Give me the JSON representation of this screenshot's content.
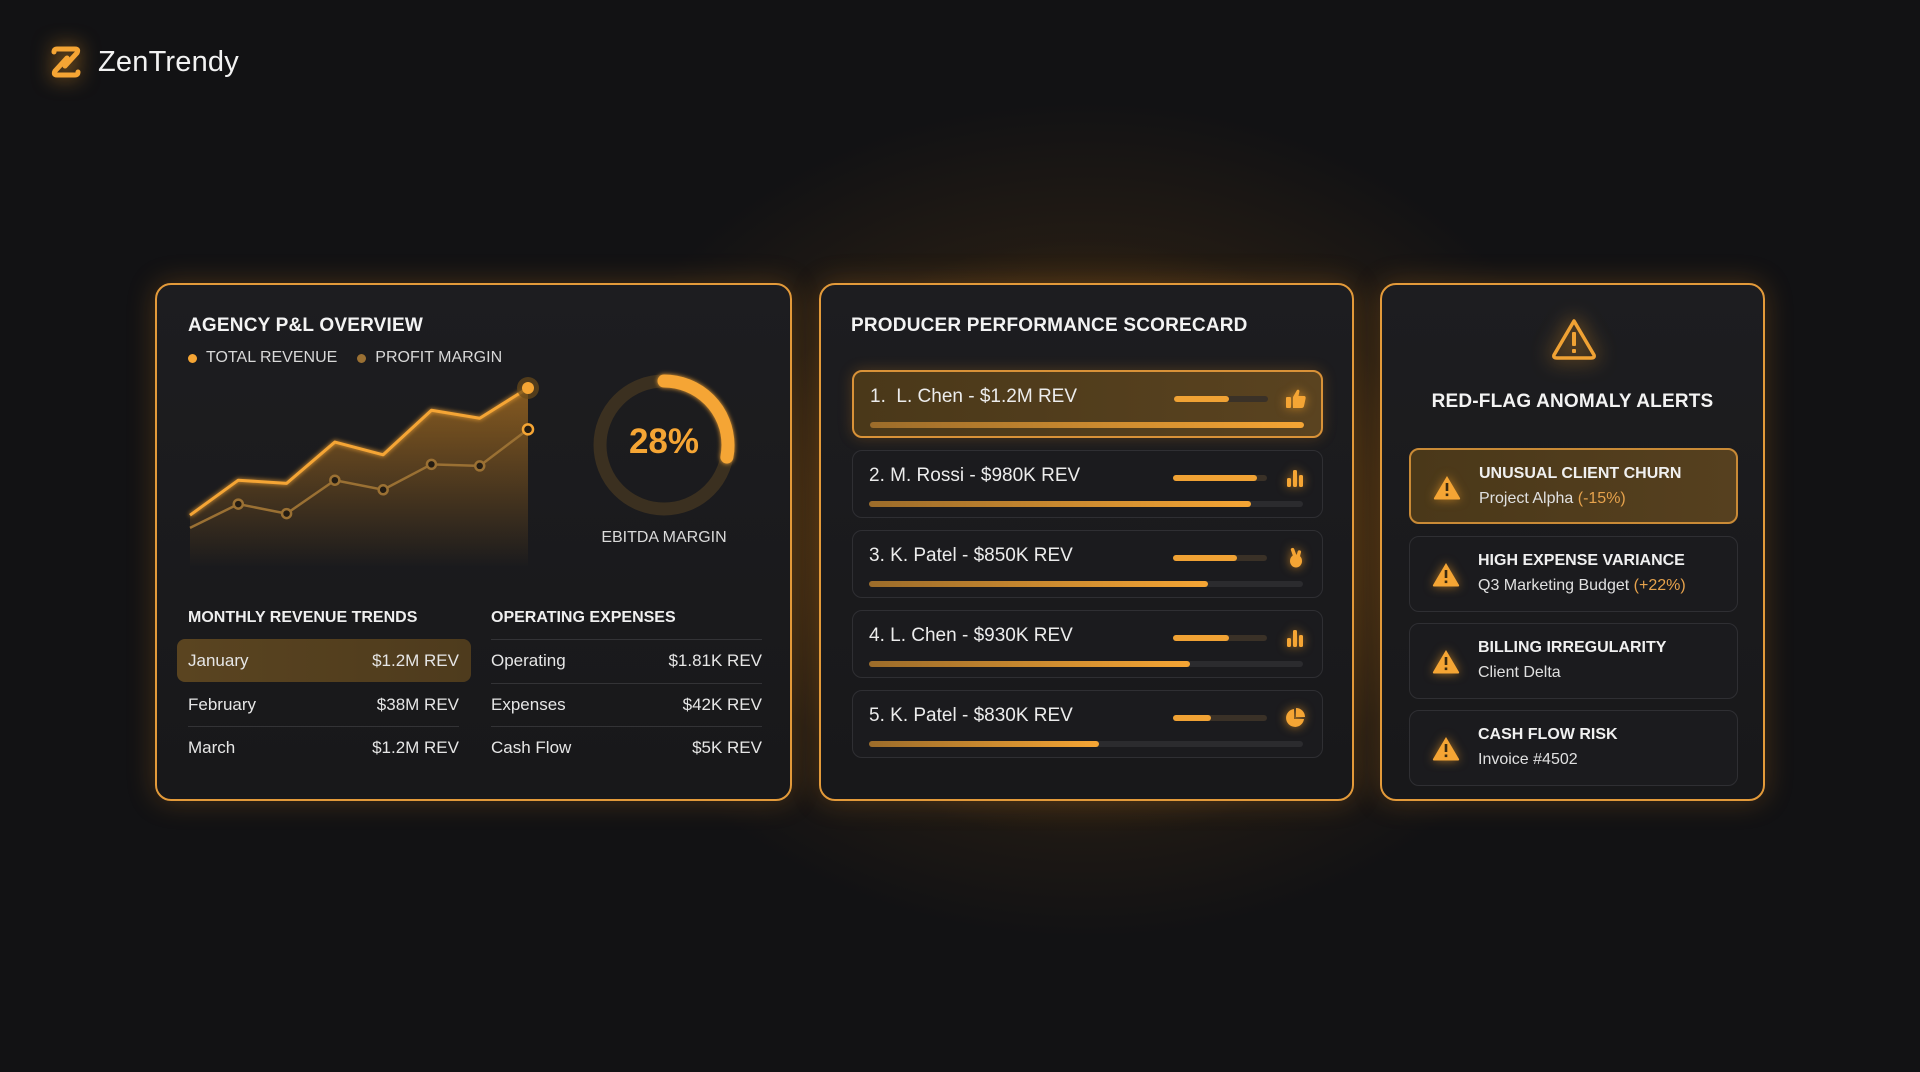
{
  "brand": {
    "name": "ZenTrendy",
    "icon": "z-logo-icon",
    "accent": "#f5a534"
  },
  "pl_overview": {
    "title": "AGENCY P&L OVERVIEW",
    "legend": [
      {
        "label": "TOTAL REVENUE",
        "color": "#f5a534"
      },
      {
        "label": "PROFIT MARGIN",
        "color": "#9a7033"
      }
    ],
    "ebitda": {
      "value": "28%",
      "percent": 28,
      "label": "EBITDA MARGIN"
    },
    "monthly": {
      "title": "MONTHLY REVENUE TRENDS",
      "rows": [
        {
          "label": "January",
          "value": "$1.2M REV",
          "highlighted": true
        },
        {
          "label": "February",
          "value": "$38M REV"
        },
        {
          "label": "March",
          "value": "$1.2M REV"
        }
      ]
    },
    "expenses": {
      "title": "OPERATING EXPENSES",
      "rows": [
        {
          "label": "Operating",
          "value": "$1.81K REV"
        },
        {
          "label": "Expenses",
          "value": "$42K REV"
        },
        {
          "label": "Cash Flow",
          "value": "$5K REV"
        }
      ]
    }
  },
  "chart_data": {
    "type": "line",
    "title": "AGENCY P&L OVERVIEW",
    "x": [
      1,
      2,
      3,
      4,
      5,
      6,
      7,
      8
    ],
    "series": [
      {
        "name": "TOTAL REVENUE",
        "values": [
          20,
          42,
          40,
          66,
          58,
          86,
          81,
          100
        ]
      },
      {
        "name": "PROFIT MARGIN",
        "values": [
          12,
          27,
          21,
          42,
          36,
          52,
          51,
          74
        ]
      }
    ],
    "xlabel": "",
    "ylabel": "",
    "grid": false,
    "legend_position": "top-left"
  },
  "scorecard": {
    "title": "PRODUCER PERFORMANCE SCORECARD",
    "rows": [
      {
        "rank": "1.",
        "label": "L. Chen - $1.2M REV",
        "mini": 58,
        "bar": 100,
        "icon": "thumbs-up-icon",
        "top": true
      },
      {
        "rank": "2.",
        "label": "M. Rossi - $980K REV",
        "mini": 89,
        "bar": 88,
        "icon": "bar-chart-icon"
      },
      {
        "rank": "3.",
        "label": "K. Patel - $850K REV",
        "mini": 68,
        "bar": 78,
        "icon": "hand-icon"
      },
      {
        "rank": "4.",
        "label": "L. Chen - $930K REV",
        "mini": 60,
        "bar": 74,
        "icon": "bar-chart-icon"
      },
      {
        "rank": "5.",
        "label": "K. Patel - $830K REV",
        "mini": 40,
        "bar": 53,
        "icon": "pie-chart-icon"
      }
    ]
  },
  "alerts": {
    "title": "RED-FLAG ANOMALY ALERTS",
    "icon": "warning-icon",
    "items": [
      {
        "title": "UNUSUAL CLIENT CHURN",
        "sub": "Project Alpha",
        "accent": "(-15%)",
        "top": true
      },
      {
        "title": "HIGH EXPENSE VARIANCE",
        "sub": "Q3 Marketing Budget",
        "accent": "(+22%)"
      },
      {
        "title": "BILLING IRREGULARITY",
        "sub": "Client Delta",
        "accent": ""
      },
      {
        "title": "CASH FLOW RISK",
        "sub": "Invoice #4502",
        "accent": ""
      }
    ]
  }
}
